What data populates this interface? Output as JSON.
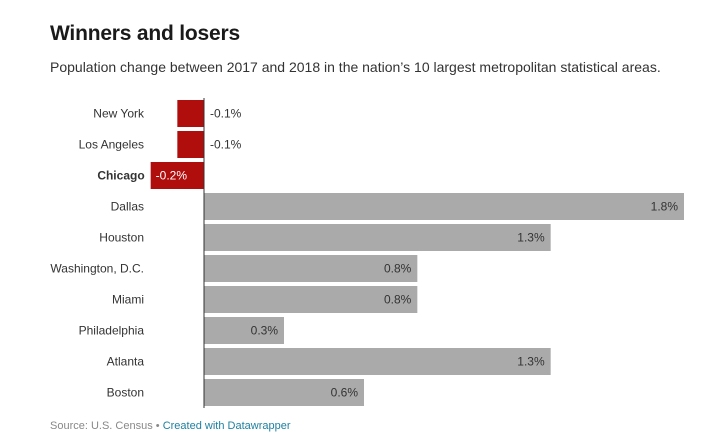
{
  "header": {
    "title": "Winners and losers",
    "subtitle": "Population change between 2017 and 2018 in the nation’s 10 largest metropolitan statistical areas."
  },
  "footer": {
    "source": "Source: U.S. Census",
    "separator": "•",
    "credit": "Created with Datawrapper"
  },
  "chart_data": {
    "type": "bar",
    "orientation": "horizontal",
    "categories": [
      "New York",
      "Los Angeles",
      "Chicago",
      "Dallas",
      "Houston",
      "Washington, D.C.",
      "Miami",
      "Philadelphia",
      "Atlanta",
      "Boston"
    ],
    "values": [
      -0.1,
      -0.1,
      -0.2,
      1.8,
      1.3,
      0.8,
      0.8,
      0.3,
      1.3,
      0.6
    ],
    "value_labels": [
      "-0.1%",
      "-0.1%",
      "-0.2%",
      "1.8%",
      "1.3%",
      "0.8%",
      "0.8%",
      "0.3%",
      "1.3%",
      "0.6%"
    ],
    "highlighted": [
      "Chicago"
    ],
    "xlim": [
      -0.2,
      1.8
    ],
    "colors": {
      "negative": "#b00d0d",
      "positive": "#aaaaaa",
      "axis": "#333333"
    }
  }
}
